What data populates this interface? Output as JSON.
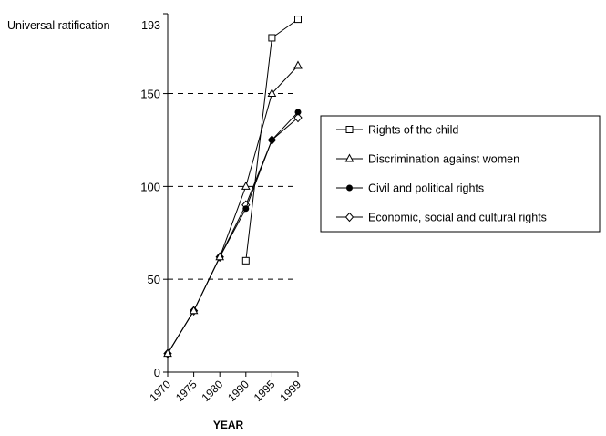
{
  "chart_data": {
    "type": "line",
    "title": "",
    "xlabel": "YEAR",
    "ylabel": "",
    "x": [
      "1970",
      "1975",
      "1980",
      "1990",
      "1995",
      "1999"
    ],
    "ylim": [
      0,
      193
    ],
    "yticks": [
      0,
      50,
      100,
      150
    ],
    "top_reference": {
      "label": "Universal ratification",
      "value": 193
    },
    "grid": "dashed horizontal lines at 50, 100 and 150",
    "legend_position": "right",
    "series": [
      {
        "name": "Rights of the child",
        "marker": "square-open",
        "values": [
          null,
          null,
          null,
          60,
          180,
          190
        ]
      },
      {
        "name": "Discrimination against women",
        "marker": "triangle-open",
        "values": [
          10,
          33,
          62,
          100,
          150,
          165
        ]
      },
      {
        "name": "Civil and political rights",
        "marker": "circle-filled",
        "values": [
          10,
          33,
          62,
          88,
          125,
          140
        ]
      },
      {
        "name": "Economic, social and cultural rights",
        "marker": "diamond-open",
        "values": [
          10,
          33,
          62,
          90,
          125,
          137
        ]
      }
    ]
  }
}
